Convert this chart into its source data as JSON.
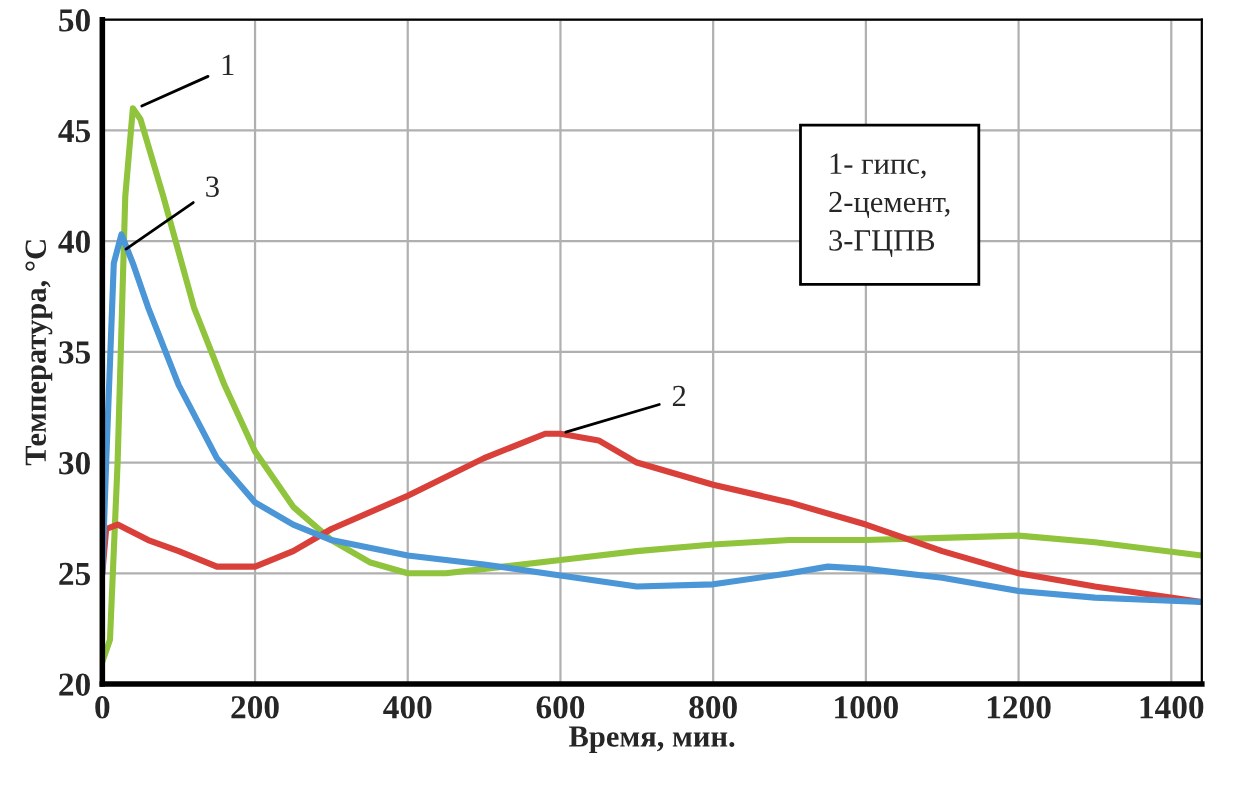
{
  "chart_data": {
    "type": "line",
    "xlabel": "Время, мин.",
    "ylabel": "Температура, °С",
    "xlim": [
      0,
      1440
    ],
    "ylim": [
      20,
      50
    ],
    "xticks": [
      0,
      200,
      400,
      600,
      800,
      1000,
      1200,
      1400
    ],
    "yticks": [
      20,
      25,
      30,
      35,
      40,
      45,
      50
    ],
    "grid": true,
    "marker": "none",
    "line_style": "solid",
    "series": [
      {
        "color": "#8fc43c",
        "x": [
          0,
          10,
          20,
          30,
          40,
          50,
          80,
          120,
          160,
          200,
          250,
          300,
          350,
          400,
          450,
          500,
          600,
          700,
          800,
          900,
          1000,
          1100,
          1200,
          1300,
          1440
        ],
        "values": [
          21,
          22,
          30,
          42,
          46,
          45.5,
          42,
          37,
          33.5,
          30.5,
          28,
          26.5,
          25.5,
          25,
          25,
          25.2,
          25.6,
          26,
          26.3,
          26.5,
          26.5,
          26.6,
          26.7,
          26.4,
          25.8
        ]
      },
      {
        "color": "#d9403a",
        "x": [
          0,
          5,
          20,
          60,
          100,
          150,
          200,
          250,
          300,
          400,
          500,
          580,
          600,
          650,
          700,
          800,
          900,
          1000,
          1100,
          1200,
          1300,
          1440
        ],
        "values": [
          25,
          27,
          27.2,
          26.5,
          26,
          25.3,
          25.3,
          26,
          27,
          28.5,
          30.2,
          31.3,
          31.3,
          31,
          30,
          29,
          28.2,
          27.2,
          26,
          25,
          24.4,
          23.7
        ]
      },
      {
        "color": "#4a96d6",
        "x": [
          0,
          5,
          15,
          25,
          40,
          60,
          100,
          150,
          200,
          250,
          300,
          400,
          500,
          600,
          700,
          800,
          900,
          950,
          1000,
          1100,
          1200,
          1300,
          1440
        ],
        "values": [
          25,
          30,
          39,
          40.3,
          39,
          37,
          33.5,
          30.2,
          28.2,
          27.2,
          26.5,
          25.8,
          25.4,
          24.9,
          24.4,
          24.5,
          25,
          25.3,
          25.2,
          24.8,
          24.2,
          23.9,
          23.7
        ]
      }
    ],
    "annotations": [
      {
        "text": "1",
        "x": 45,
        "y": 46
      },
      {
        "text": "2",
        "x": 600,
        "y": 31.3
      },
      {
        "text": "3",
        "x": 25,
        "y": 39.5
      },
      "1- гипс,\n2-цемент,\n3-ГЦПВ"
    ]
  }
}
